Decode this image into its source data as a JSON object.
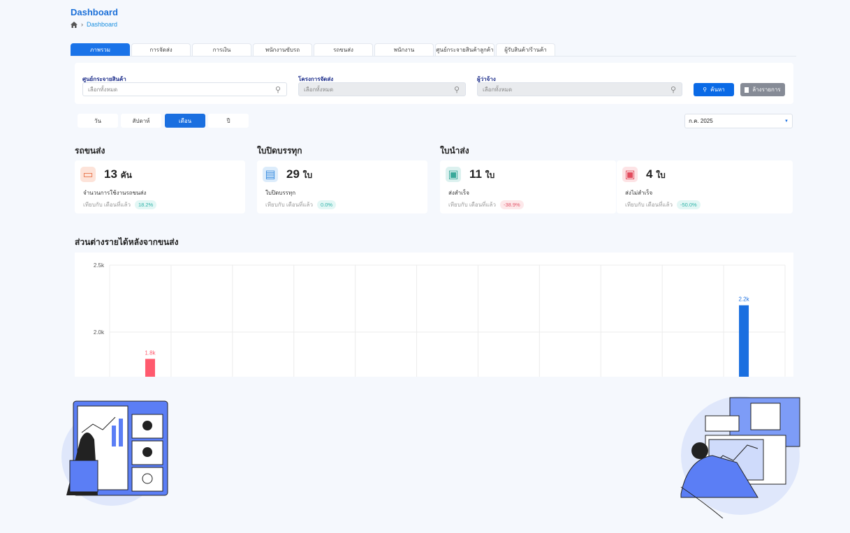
{
  "header": {
    "title": "Dashboard",
    "breadcrumb": "Dashboard"
  },
  "tabs": [
    "ภาพรวม",
    "การจัดส่ง",
    "การเงิน",
    "พนักงานขับรถ",
    "รถขนส่ง",
    "พนักงาน",
    "ศูนย์กระจายสินค้าลูกค้า",
    "ผู้รับสินค้า/ร้านค้า"
  ],
  "filters": {
    "dc": {
      "label": "ศูนย์กระจายสินค้า",
      "placeholder": "เลือกทั้งหมด"
    },
    "project": {
      "label": "โครงการจัดส่ง",
      "placeholder": "เลือกทั้งหมด"
    },
    "employer": {
      "label": "ผู้ว่าจ้าง",
      "placeholder": "เลือกทั้งหมด"
    },
    "search_label": "ค้นหา",
    "clear_label": "ล้างรายการ"
  },
  "periods": [
    "วัน",
    "สัปดาห์",
    "เดือน",
    "ปี"
  ],
  "selected_period": "เดือน",
  "month_select": "ก.ค. 2025",
  "sections": {
    "vehicles": "รถขนส่ง",
    "loading": "ใบปิดบรรทุก",
    "delivery": "ใบนำส่ง",
    "profit": "ส่วนต่างรายได้หลังจากขนส่ง"
  },
  "cards": [
    {
      "value": "13",
      "unit": "คัน",
      "label": "จำนวนการใช้งานรถขนส่ง",
      "compare": "เทียบกับ เดือนที่แล้ว",
      "change": "18.2%",
      "icon": "truck-icon",
      "tone": "positive"
    },
    {
      "value": "29",
      "unit": "ใบ",
      "label": "ใบปิดบรรทุก",
      "compare": "เทียบกับ เดือนที่แล้ว",
      "change": "0.0%",
      "icon": "document-icon",
      "tone": "positive"
    },
    {
      "value": "11",
      "unit": "ใบ",
      "label": "ส่งสำเร็จ",
      "compare": "เทียบกับ เดือนที่แล้ว",
      "change": "-38.9%",
      "icon": "delivery-success-icon",
      "tone": "negative"
    },
    {
      "value": "4",
      "unit": "ใบ",
      "label": "ส่งไม่สำเร็จ",
      "compare": "เทียบกับ เดือนที่แล้ว",
      "change": "-50.0%",
      "icon": "delivery-failed-icon",
      "tone": "positive"
    }
  ],
  "colors": {
    "accent": "#1a6fe0",
    "red_bar": "#ff5a6e",
    "blue_bar": "#1a6fe0",
    "positive_badge": "#e3f7f5",
    "negative_badge": "#fde8ea"
  },
  "chart_data": {
    "type": "bar",
    "grid": true,
    "ylim": [
      0,
      2500
    ],
    "yticks": [
      "2.0k",
      "2.5k"
    ],
    "series": [
      {
        "values": [
          1800,
          null,
          null,
          null,
          null,
          null,
          null,
          null,
          null,
          null,
          null
        ],
        "labels": [
          "1.8k"
        ],
        "color": "#ff5a6e"
      },
      {
        "values": [
          null,
          null,
          null,
          null,
          null,
          null,
          null,
          null,
          null,
          null,
          2200
        ],
        "labels": [
          "2.2k"
        ],
        "color": "#1a6fe0"
      }
    ]
  }
}
